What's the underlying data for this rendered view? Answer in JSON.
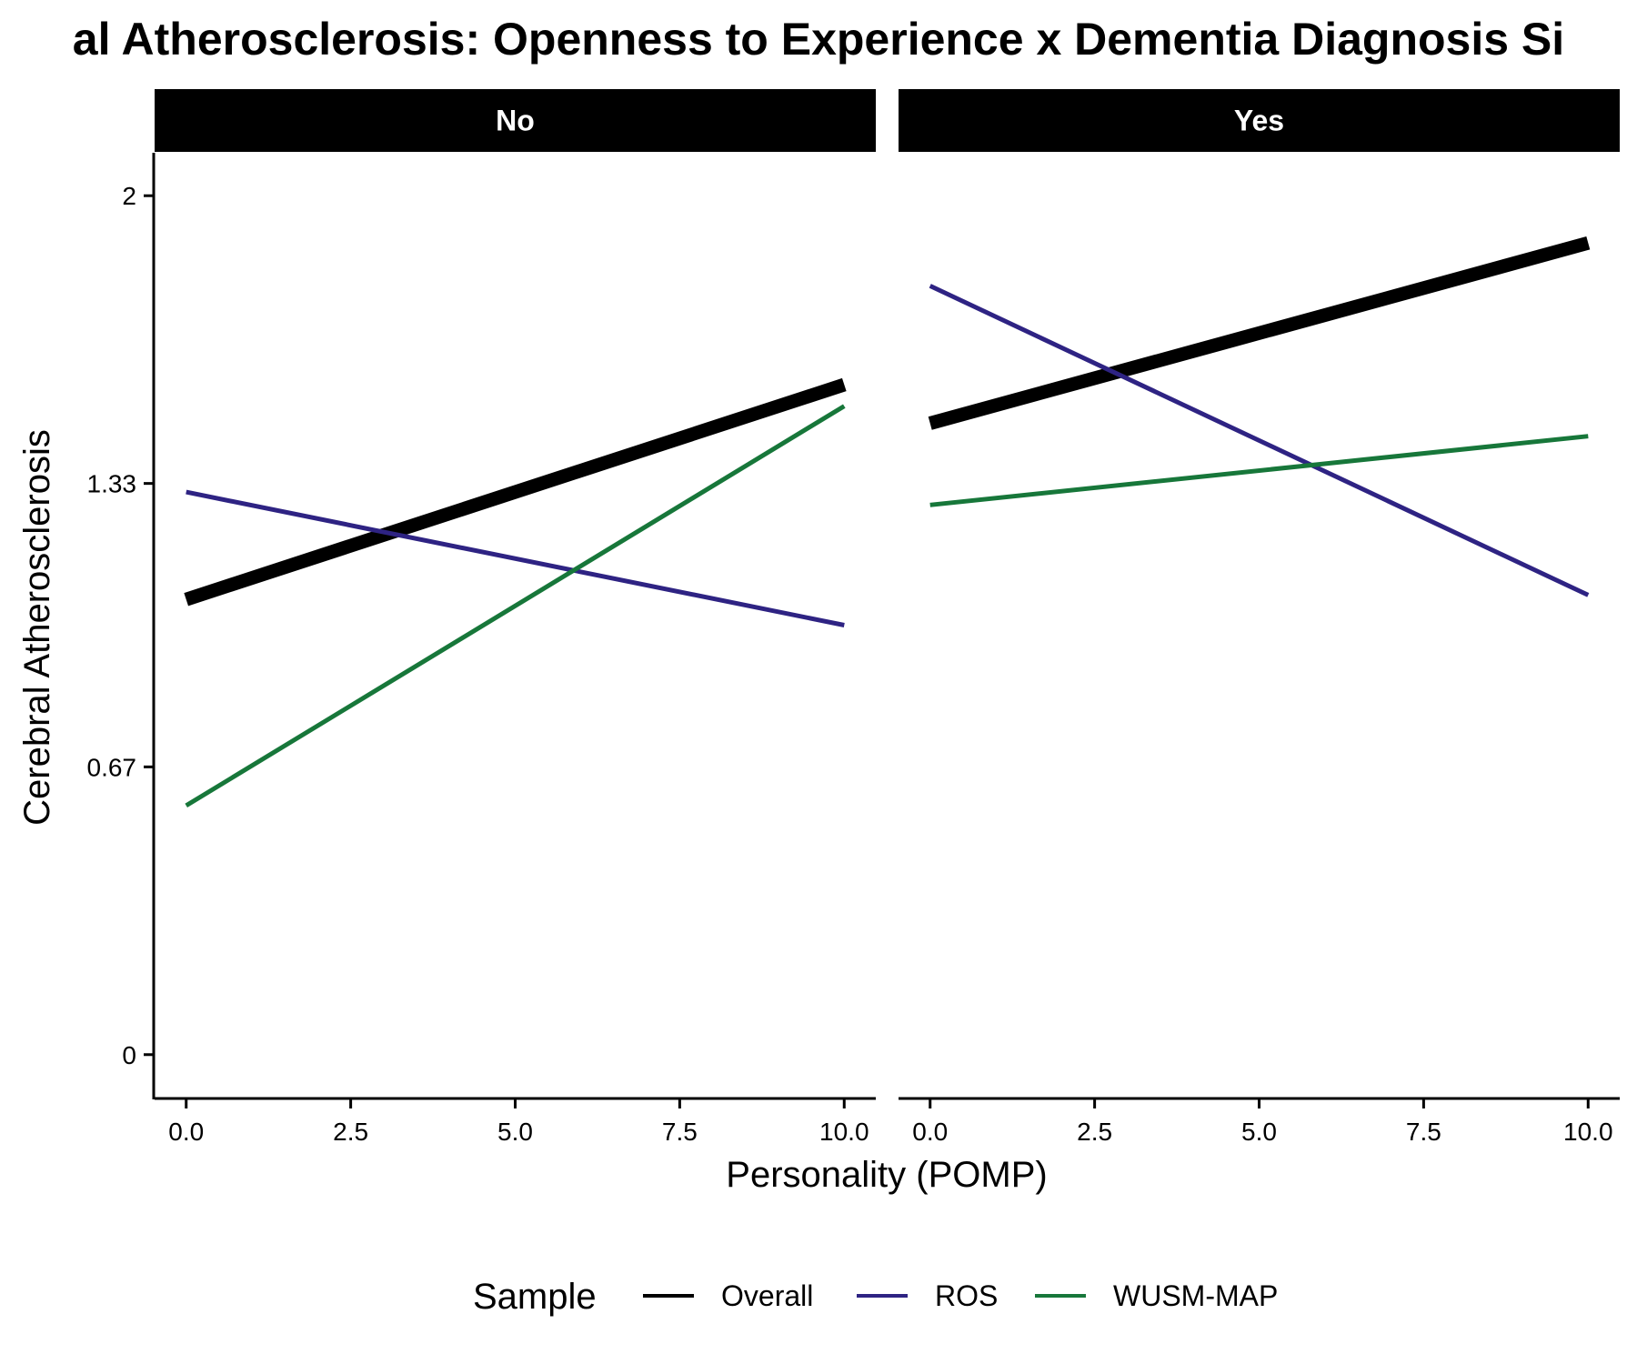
{
  "chart_data": {
    "type": "line",
    "title": "al Atherosclerosis: Openness to Experience x Dementia Diagnosis Si",
    "xlabel": "Personality (POMP)",
    "ylabel": "Cerebral Atherosclerosis",
    "xlim": [
      -0.48,
      10.48
    ],
    "ylim": [
      -0.1,
      2.1
    ],
    "x_ticks": [
      0,
      2.5,
      5,
      7.5,
      10
    ],
    "x_tick_labels": [
      "0.0",
      "2.5",
      "5.0",
      "7.5",
      "10.0"
    ],
    "y_ticks": [
      0,
      0.67,
      1.33,
      2
    ],
    "y_tick_labels": [
      "0",
      "0.67",
      "1.33",
      "2"
    ],
    "grid": false,
    "legend": {
      "title": "Sample",
      "position": "bottom"
    },
    "panels": [
      {
        "label": "No",
        "series": [
          {
            "name": "Overall",
            "x": [
              0,
              10
            ],
            "y": [
              1.06,
              1.56
            ]
          },
          {
            "name": "ROS",
            "x": [
              0,
              10
            ],
            "y": [
              1.31,
              1.0
            ]
          },
          {
            "name": "WUSM-MAP",
            "x": [
              0,
              10
            ],
            "y": [
              0.58,
              1.51
            ]
          }
        ]
      },
      {
        "label": "Yes",
        "series": [
          {
            "name": "Overall",
            "x": [
              0,
              10
            ],
            "y": [
              1.47,
              1.89
            ]
          },
          {
            "name": "ROS",
            "x": [
              0,
              10
            ],
            "y": [
              1.79,
              1.07
            ]
          },
          {
            "name": "WUSM-MAP",
            "x": [
              0,
              10
            ],
            "y": [
              1.28,
              1.44
            ]
          }
        ]
      }
    ],
    "series_styles": [
      {
        "name": "Overall",
        "color": "#000000"
      },
      {
        "name": "ROS",
        "color": "#2e2383"
      },
      {
        "name": "WUSM-MAP",
        "color": "#17773a"
      }
    ]
  }
}
